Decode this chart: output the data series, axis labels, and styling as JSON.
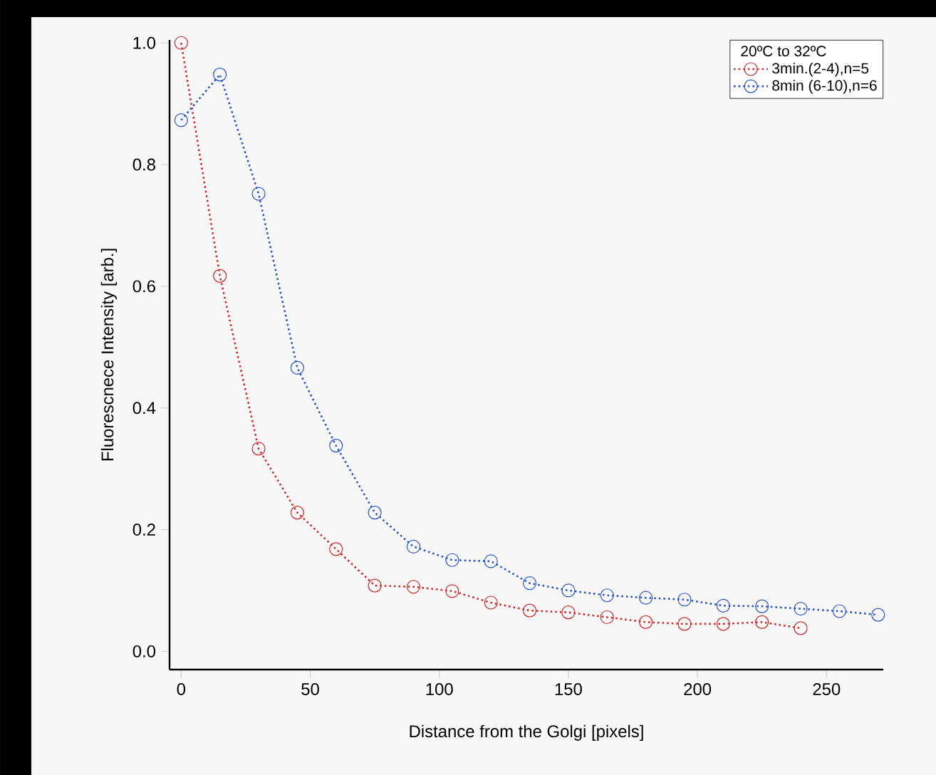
{
  "chart_data": {
    "type": "line",
    "xlabel": "Distance from the Golgi [pixels]",
    "ylabel": "Fluorescnece Intensity [arb.]",
    "legend_title": "20ºC to 32ºC",
    "x": [
      0,
      15,
      30,
      45,
      60,
      75,
      90,
      105,
      120,
      135,
      150,
      165,
      180,
      195,
      210,
      225,
      240,
      255,
      270
    ],
    "series": [
      {
        "name": "3min.(2-4),n=5",
        "color": "#d42a2a",
        "values": [
          1.0,
          0.617,
          0.333,
          0.228,
          0.168,
          0.108,
          0.106,
          0.099,
          0.08,
          0.067,
          0.064,
          0.056,
          0.048,
          0.045,
          0.045,
          0.048,
          0.038,
          null,
          null
        ]
      },
      {
        "name": "8min (6-10),n=6",
        "color": "#2a55cc",
        "values": [
          0.873,
          0.948,
          0.752,
          0.466,
          0.338,
          0.228,
          0.172,
          0.15,
          0.148,
          0.112,
          0.1,
          0.092,
          0.088,
          0.085,
          0.075,
          0.074,
          0.07,
          0.066,
          0.06
        ]
      }
    ],
    "xlim": [
      -4.5,
      272
    ],
    "ylim": [
      -0.03,
      1.005
    ],
    "xticks": [
      0,
      50,
      100,
      150,
      200,
      250
    ],
    "yticks": [
      {
        "value": 0,
        "label": "0.0"
      },
      0.2,
      0.4,
      0.6,
      0.8,
      {
        "value": 1,
        "label": "1.0"
      }
    ],
    "legend": "top right",
    "marker": "circle",
    "line_style": "dotted",
    "grid": false
  }
}
